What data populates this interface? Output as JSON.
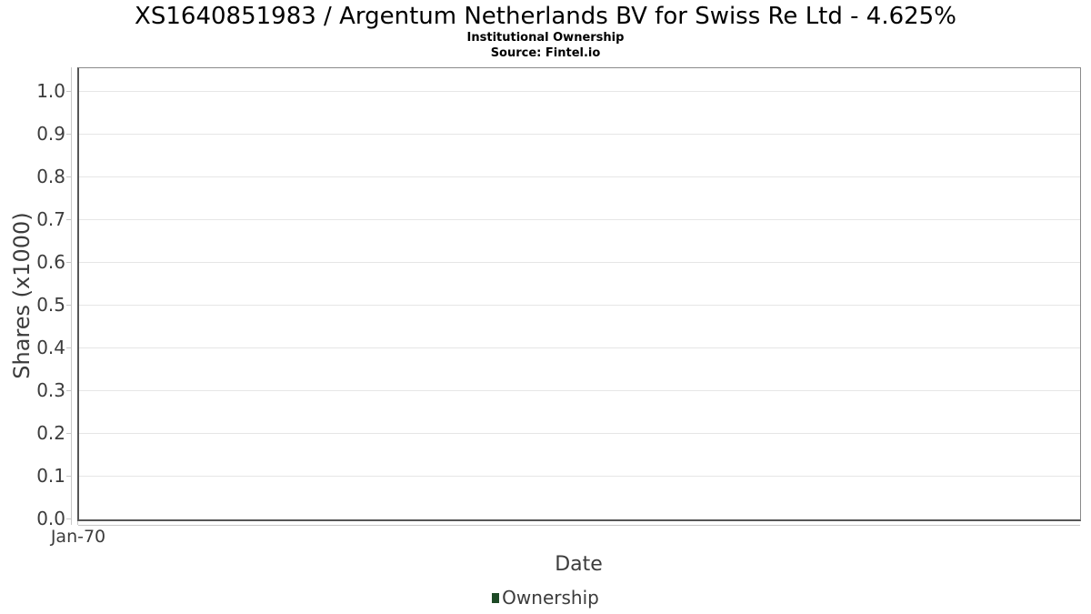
{
  "chart_data": {
    "type": "line",
    "title": "XS1640851983 / Argentum Netherlands BV for Swiss Re Ltd - 4.625%",
    "subtitle": "Institutional Ownership",
    "source_note": "Source: Fintel.io",
    "xlabel": "Date",
    "ylabel": "Shares (x1000)",
    "x_tick_labels": [
      "Jan-70"
    ],
    "y_tick_labels": [
      "0.0",
      "0.1",
      "0.2",
      "0.3",
      "0.4",
      "0.5",
      "0.6",
      "0.7",
      "0.8",
      "0.9",
      "1.0"
    ],
    "y_ticks": [
      0.0,
      0.1,
      0.2,
      0.3,
      0.4,
      0.5,
      0.6,
      0.7,
      0.8,
      0.9,
      1.0
    ],
    "ylim": [
      0.0,
      1.055
    ],
    "grid": true,
    "legend": {
      "position": "bottom-center",
      "entries": [
        {
          "label": "Ownership",
          "marker_color": "#1d4a26"
        }
      ]
    },
    "series": [
      {
        "name": "Ownership",
        "x": [],
        "values": []
      }
    ],
    "colors": {
      "grid": "#e6e6e6",
      "axis_light": "#c8c8c8",
      "spine_dark": "#565656",
      "spine_light": "#8a8a8a",
      "tick_text": "#3c3c3c",
      "title_text": "#000000"
    }
  }
}
